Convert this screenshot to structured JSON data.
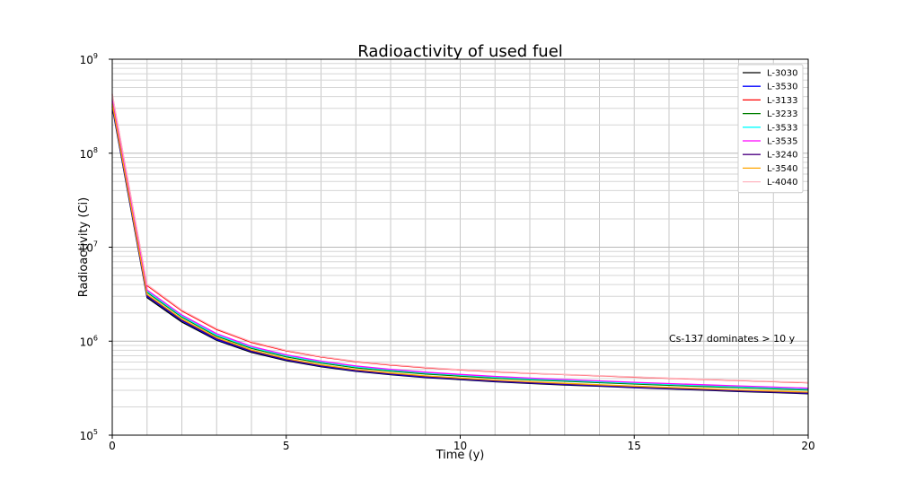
{
  "chart_data": {
    "type": "line",
    "title": "Radioactivity of used fuel",
    "xlabel": "Time (y)",
    "ylabel": "Radioactivity (Ci)",
    "xlim": [
      0,
      20
    ],
    "ylim": [
      100000,
      1000000000
    ],
    "yscale": "log",
    "xticks": [
      0,
      5,
      10,
      15,
      20
    ],
    "yticks": [
      {
        "value": 100000,
        "base": "10",
        "exp": "5"
      },
      {
        "value": 1000000,
        "base": "10",
        "exp": "6"
      },
      {
        "value": 10000000,
        "base": "10",
        "exp": "7"
      },
      {
        "value": 100000000,
        "base": "10",
        "exp": "8"
      },
      {
        "value": 1000000000,
        "base": "10",
        "exp": "9"
      }
    ],
    "grid": true,
    "legend_position": "top-right",
    "annotation": "Cs-137 dominates > 10 y",
    "x": [
      0,
      1,
      2,
      3,
      4,
      5,
      6,
      7,
      8,
      9,
      10,
      11,
      12,
      13,
      14,
      15,
      16,
      17,
      18,
      19,
      20
    ],
    "series": [
      {
        "name": "L-3030",
        "color": "#000000",
        "values": [
          310000000,
          2900000,
          1600000,
          1020000,
          760000,
          620000,
          535000,
          478000,
          440000,
          410000,
          390000,
          370000,
          355000,
          342000,
          331000,
          320000,
          310000,
          301000,
          292000,
          284000,
          276000
        ]
      },
      {
        "name": "L-3530",
        "color": "#0000ff",
        "values": [
          320000000,
          3000000,
          1650000,
          1040000,
          775000,
          630000,
          542000,
          484000,
          445000,
          415000,
          394000,
          374000,
          359000,
          346000,
          334000,
          323000,
          313000,
          304000,
          295000,
          287000,
          279000
        ]
      },
      {
        "name": "L-3133",
        "color": "#ff0000",
        "values": [
          420000000,
          3900000,
          2100000,
          1330000,
          970000,
          790000,
          680000,
          605000,
          558000,
          522000,
          495000,
          472000,
          455000,
          441000,
          428000,
          415000,
          403000,
          392000,
          381000,
          371000,
          361000
        ]
      },
      {
        "name": "L-3233",
        "color": "#008000",
        "values": [
          360000000,
          3300000,
          1800000,
          1130000,
          840000,
          680000,
          585000,
          520000,
          480000,
          448000,
          425000,
          404000,
          388000,
          375000,
          362000,
          350000,
          339000,
          329000,
          320000,
          311000,
          302000
        ]
      },
      {
        "name": "L-3533",
        "color": "#00ffff",
        "values": [
          370000000,
          3400000,
          1850000,
          1160000,
          860000,
          700000,
          600000,
          534000,
          492000,
          459000,
          435000,
          414000,
          397000,
          383000,
          370000,
          358000,
          347000,
          337000,
          327000,
          318000,
          309000
        ]
      },
      {
        "name": "L-3535",
        "color": "#ff00ff",
        "values": [
          380000000,
          3500000,
          1900000,
          1200000,
          880000,
          715000,
          613000,
          545000,
          502000,
          468000,
          443000,
          422000,
          405000,
          391000,
          378000,
          365000,
          354000,
          344000,
          334000,
          325000,
          316000
        ]
      },
      {
        "name": "L-3240",
        "color": "#4b0082",
        "values": [
          330000000,
          3050000,
          1680000,
          1060000,
          785000,
          638000,
          548000,
          489000,
          450000,
          419000,
          398000,
          378000,
          362000,
          349000,
          337000,
          326000,
          316000,
          306000,
          297000,
          289000,
          281000
        ]
      },
      {
        "name": "L-3540",
        "color": "#ffa500",
        "values": [
          340000000,
          3150000,
          1720000,
          1090000,
          805000,
          652000,
          560000,
          499000,
          459000,
          428000,
          406000,
          386000,
          370000,
          356000,
          344000,
          333000,
          322000,
          312000,
          303000,
          295000,
          287000
        ]
      },
      {
        "name": "L-4040",
        "color": "#ffb6c1",
        "values": [
          430000000,
          4000000,
          2150000,
          1360000,
          990000,
          800000,
          688000,
          612000,
          564000,
          527000,
          499000,
          476000,
          458000,
          443000,
          430000,
          417000,
          405000,
          394000,
          383000,
          373000,
          363000
        ]
      }
    ]
  }
}
